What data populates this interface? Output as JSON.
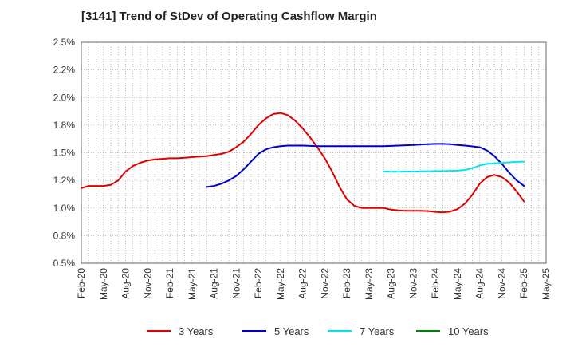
{
  "chart_data": {
    "type": "line",
    "title": "[3141]  Trend of StDev of Operating Cashflow Margin",
    "xlabel": "",
    "ylabel": "",
    "x_tick_labels": [
      "Feb-20",
      "May-20",
      "Aug-20",
      "Nov-20",
      "Feb-21",
      "May-21",
      "Aug-21",
      "Nov-21",
      "Feb-22",
      "May-22",
      "Aug-22",
      "Nov-22",
      "Feb-23",
      "May-23",
      "Aug-23",
      "Nov-23",
      "Feb-24",
      "May-24",
      "Aug-24",
      "Nov-24",
      "Feb-25",
      "May-25"
    ],
    "y_tick_labels": [
      "0.5%",
      "0.8%",
      "1.0%",
      "1.2%",
      "1.5%",
      "1.8%",
      "2.0%",
      "2.2%",
      "2.5%"
    ],
    "ylim": [
      0.5,
      2.5
    ],
    "y_unit": "%",
    "grid": true,
    "legend_position": "bottom",
    "series": [
      {
        "name": "3 Years",
        "color": "#e00000",
        "values": [
          [
            "Feb-20",
            1.18
          ],
          [
            "Mar-20",
            1.2
          ],
          [
            "Apr-20",
            1.2
          ],
          [
            "May-20",
            1.2
          ],
          [
            "Jun-20",
            1.21
          ],
          [
            "Jul-20",
            1.25
          ],
          [
            "Aug-20",
            1.33
          ],
          [
            "Sep-20",
            1.38
          ],
          [
            "Oct-20",
            1.41
          ],
          [
            "Nov-20",
            1.43
          ],
          [
            "Dec-20",
            1.44
          ],
          [
            "Jan-21",
            1.445
          ],
          [
            "Feb-21",
            1.45
          ],
          [
            "Mar-21",
            1.45
          ],
          [
            "Apr-21",
            1.455
          ],
          [
            "May-21",
            1.46
          ],
          [
            "Jun-21",
            1.465
          ],
          [
            "Jul-21",
            1.47
          ],
          [
            "Aug-21",
            1.48
          ],
          [
            "Sep-21",
            1.49
          ],
          [
            "Oct-21",
            1.51
          ],
          [
            "Nov-21",
            1.55
          ],
          [
            "Dec-21",
            1.6
          ],
          [
            "Jan-22",
            1.67
          ],
          [
            "Feb-22",
            1.75
          ],
          [
            "Mar-22",
            1.81
          ],
          [
            "Apr-22",
            1.85
          ],
          [
            "May-22",
            1.86
          ],
          [
            "Jun-22",
            1.84
          ],
          [
            "Jul-22",
            1.79
          ],
          [
            "Aug-22",
            1.72
          ],
          [
            "Sep-22",
            1.64
          ],
          [
            "Oct-22",
            1.55
          ],
          [
            "Nov-22",
            1.45
          ],
          [
            "Dec-22",
            1.33
          ],
          [
            "Jan-23",
            1.19
          ],
          [
            "Feb-23",
            1.08
          ],
          [
            "Mar-23",
            1.02
          ],
          [
            "Apr-23",
            1.0
          ],
          [
            "May-23",
            1.0
          ],
          [
            "Jun-23",
            1.0
          ],
          [
            "Jul-23",
            1.0
          ],
          [
            "Aug-23",
            0.985
          ],
          [
            "Sep-23",
            0.978
          ],
          [
            "Oct-23",
            0.975
          ],
          [
            "Nov-23",
            0.975
          ],
          [
            "Dec-23",
            0.975
          ],
          [
            "Jan-24",
            0.972
          ],
          [
            "Feb-24",
            0.965
          ],
          [
            "Mar-24",
            0.96
          ],
          [
            "Apr-24",
            0.968
          ],
          [
            "May-24",
            0.99
          ],
          [
            "Jun-24",
            1.04
          ],
          [
            "Jul-24",
            1.12
          ],
          [
            "Aug-24",
            1.22
          ],
          [
            "Sep-24",
            1.28
          ],
          [
            "Oct-24",
            1.3
          ],
          [
            "Nov-24",
            1.28
          ],
          [
            "Dec-24",
            1.23
          ],
          [
            "Jan-25",
            1.15
          ],
          [
            "Feb-25",
            1.06
          ]
        ]
      },
      {
        "name": "5 Years",
        "color": "#0000cc",
        "values": [
          [
            "Jul-21",
            1.19
          ],
          [
            "Aug-21",
            1.2
          ],
          [
            "Sep-21",
            1.22
          ],
          [
            "Oct-21",
            1.25
          ],
          [
            "Nov-21",
            1.29
          ],
          [
            "Dec-21",
            1.35
          ],
          [
            "Jan-22",
            1.42
          ],
          [
            "Feb-22",
            1.49
          ],
          [
            "Mar-22",
            1.53
          ],
          [
            "Apr-22",
            1.55
          ],
          [
            "May-22",
            1.56
          ],
          [
            "Jun-22",
            1.565
          ],
          [
            "Jul-22",
            1.565
          ],
          [
            "Aug-22",
            1.565
          ],
          [
            "Sep-22",
            1.562
          ],
          [
            "Oct-22",
            1.56
          ],
          [
            "Nov-22",
            1.56
          ],
          [
            "Dec-22",
            1.56
          ],
          [
            "Jan-23",
            1.56
          ],
          [
            "Feb-23",
            1.56
          ],
          [
            "Mar-23",
            1.56
          ],
          [
            "Apr-23",
            1.56
          ],
          [
            "May-23",
            1.56
          ],
          [
            "Jun-23",
            1.56
          ],
          [
            "Jul-23",
            1.56
          ],
          [
            "Aug-23",
            1.562
          ],
          [
            "Sep-23",
            1.565
          ],
          [
            "Oct-23",
            1.568
          ],
          [
            "Nov-23",
            1.57
          ],
          [
            "Dec-23",
            1.575
          ],
          [
            "Jan-24",
            1.578
          ],
          [
            "Feb-24",
            1.58
          ],
          [
            "Mar-24",
            1.58
          ],
          [
            "Apr-24",
            1.578
          ],
          [
            "May-24",
            1.57
          ],
          [
            "Jun-24",
            1.565
          ],
          [
            "Jul-24",
            1.558
          ],
          [
            "Aug-24",
            1.55
          ],
          [
            "Sep-24",
            1.52
          ],
          [
            "Oct-24",
            1.47
          ],
          [
            "Nov-24",
            1.4
          ],
          [
            "Dec-24",
            1.32
          ],
          [
            "Jan-25",
            1.25
          ],
          [
            "Feb-25",
            1.2
          ]
        ]
      },
      {
        "name": "7 Years",
        "color": "#00e5ee",
        "values": [
          [
            "Jul-23",
            1.33
          ],
          [
            "Aug-23",
            1.328
          ],
          [
            "Sep-23",
            1.328
          ],
          [
            "Oct-23",
            1.33
          ],
          [
            "Nov-23",
            1.33
          ],
          [
            "Dec-23",
            1.332
          ],
          [
            "Jan-24",
            1.332
          ],
          [
            "Feb-24",
            1.335
          ],
          [
            "Mar-24",
            1.335
          ],
          [
            "Apr-24",
            1.337
          ],
          [
            "May-24",
            1.338
          ],
          [
            "Jun-24",
            1.345
          ],
          [
            "Jul-24",
            1.36
          ],
          [
            "Aug-24",
            1.385
          ],
          [
            "Sep-24",
            1.4
          ],
          [
            "Oct-24",
            1.405
          ],
          [
            "Nov-24",
            1.41
          ],
          [
            "Dec-24",
            1.413
          ],
          [
            "Jan-25",
            1.418
          ],
          [
            "Feb-25",
            1.42
          ]
        ]
      },
      {
        "name": "10 Years",
        "color": "#008000",
        "values": []
      }
    ]
  }
}
